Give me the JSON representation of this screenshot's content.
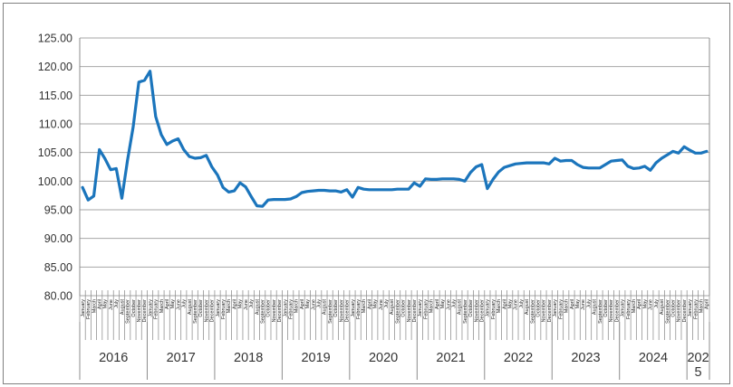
{
  "figure": {
    "background": "#ffffff",
    "border_color": "#808080",
    "title": "",
    "legend": "none"
  },
  "chart_data": {
    "type": "line",
    "title": "",
    "xlabel": "",
    "ylabel": "",
    "grid": "horizontal",
    "legend_position": "none",
    "y_axis": {
      "min": 80,
      "max": 125,
      "step": 5,
      "tick_labels": [
        "125.00",
        "120.00",
        "115.00",
        "110.00",
        "105.00",
        "100.00",
        "95.00",
        "90.00",
        "85.00",
        "80.00"
      ],
      "tick_label_color": "#333333"
    },
    "x_axis": {
      "month_labels": [
        "January",
        "February",
        "March",
        "April",
        "May",
        "June",
        "July",
        "August",
        "September",
        "October",
        "November",
        "December"
      ],
      "years": [
        {
          "label": "2016",
          "months": 12
        },
        {
          "label": "2017",
          "months": 12
        },
        {
          "label": "2018",
          "months": 12
        },
        {
          "label": "2019",
          "months": 12
        },
        {
          "label": "2020",
          "months": 12
        },
        {
          "label": "2021",
          "months": 12
        },
        {
          "label": "2022",
          "months": 12
        },
        {
          "label": "2023",
          "months": 12
        },
        {
          "label": "2024",
          "months": 12
        },
        {
          "label": "2025",
          "months": 4
        }
      ],
      "last_year_wrapped_label": [
        "202",
        "5"
      ]
    },
    "series": [
      {
        "name": "series-1",
        "color": "#1B75BC",
        "values": [
          98.9,
          96.7,
          97.4,
          105.5,
          103.9,
          102.0,
          102.2,
          97.0,
          103.6,
          109.5,
          117.3,
          117.6,
          119.2,
          111.3,
          108.1,
          106.4,
          107.0,
          107.4,
          105.5,
          104.3,
          104.0,
          104.1,
          104.5,
          102.5,
          101.1,
          98.9,
          98.1,
          98.3,
          99.7,
          99.0,
          97.3,
          95.7,
          95.6,
          96.7,
          96.8,
          96.8,
          96.8,
          96.9,
          97.3,
          98.0,
          98.2,
          98.3,
          98.4,
          98.4,
          98.3,
          98.3,
          98.1,
          98.5,
          97.2,
          98.9,
          98.6,
          98.5,
          98.5,
          98.5,
          98.5,
          98.5,
          98.6,
          98.6,
          98.6,
          99.7,
          99.1,
          100.4,
          100.3,
          100.3,
          100.4,
          100.4,
          100.4,
          100.3,
          100.0,
          101.5,
          102.5,
          102.9,
          98.7,
          100.3,
          101.6,
          102.4,
          102.7,
          103.0,
          103.1,
          103.2,
          103.2,
          103.2,
          103.2,
          103.0,
          104.0,
          103.5,
          103.6,
          103.6,
          102.9,
          102.4,
          102.3,
          102.3,
          102.3,
          102.9,
          103.5,
          103.6,
          103.7,
          102.6,
          102.2,
          102.3,
          102.6,
          101.9,
          103.2,
          104.0,
          104.6,
          105.2,
          104.9,
          106.0,
          105.4,
          104.9,
          104.9,
          105.2
        ]
      }
    ],
    "style": {
      "gridline_color": "#a6a6a6",
      "axis_color": "#8c8c8c",
      "month_label_color": "#1a1a1a",
      "year_label_color": "#333333",
      "line_width": 3.2
    }
  }
}
